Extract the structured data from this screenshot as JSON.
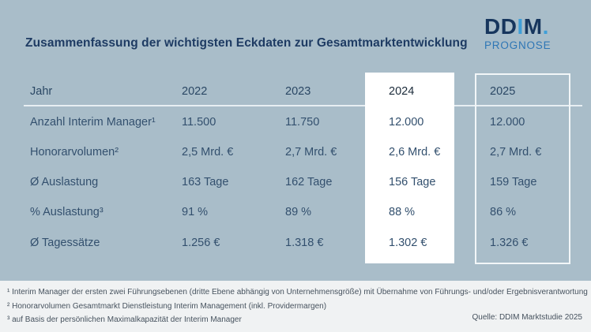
{
  "slide": {
    "title": "Zusammenfassung der wichtigsten Eckdaten zur Gesamtmarktentwicklung"
  },
  "logo": {
    "dd": "DD",
    "i": "I",
    "m": "M",
    "dot": ".",
    "subtitle": "PROGNOSE"
  },
  "table": {
    "row_header_label": "Jahr",
    "years": [
      "2022",
      "2023",
      "2024",
      "2025"
    ],
    "highlight_year": "2024",
    "forecast_year": "2025",
    "rows": [
      {
        "label": "Anzahl Interim Manager¹",
        "values": [
          "11.500",
          "11.750",
          "12.000",
          "12.000"
        ]
      },
      {
        "label": "Honorarvolumen²",
        "values": [
          "2,5 Mrd. €",
          "2,7 Mrd. €",
          "2,6 Mrd. €",
          "2,7 Mrd. €"
        ]
      },
      {
        "label": "Ø Auslastung",
        "values": [
          "163 Tage",
          "162 Tage",
          "156 Tage",
          "159 Tage"
        ]
      },
      {
        "label": "% Auslastung³",
        "values": [
          "91 %",
          "89 %",
          "88 %",
          "86 %"
        ]
      },
      {
        "label": "Ø Tagessätze",
        "values": [
          "1.256 €",
          "1.318 €",
          "1.302 €",
          "1.326 €"
        ]
      }
    ]
  },
  "footnotes": [
    "¹ Interim Manager der ersten zwei Führungsebenen (dritte Ebene abhängig von Unternehmensgröße) mit Übernahme von Führungs- und/oder Ergebnisverantwortung",
    "² Honorarvolumen Gesamtmarkt Dienstleistung Interim Management (inkl. Providermargen)",
    "³ auf Basis der persönlichen Maximalkapazität der Interim Manager"
  ],
  "source": "Quelle: DDIM Marktstudie 2025",
  "colors": {
    "background": "#a9bdc9",
    "footer_background": "#f0f2f3",
    "highlight_column": "#ffffff",
    "forecast_box_border": "#f2f6f8",
    "title_text": "#1e3b63",
    "table_text": "#33506e",
    "logo_dark_navy": "#17365d",
    "logo_light_blue": "#3f9fd8",
    "prognose_blue": "#2e76b5",
    "footnote_text": "#46525e"
  }
}
